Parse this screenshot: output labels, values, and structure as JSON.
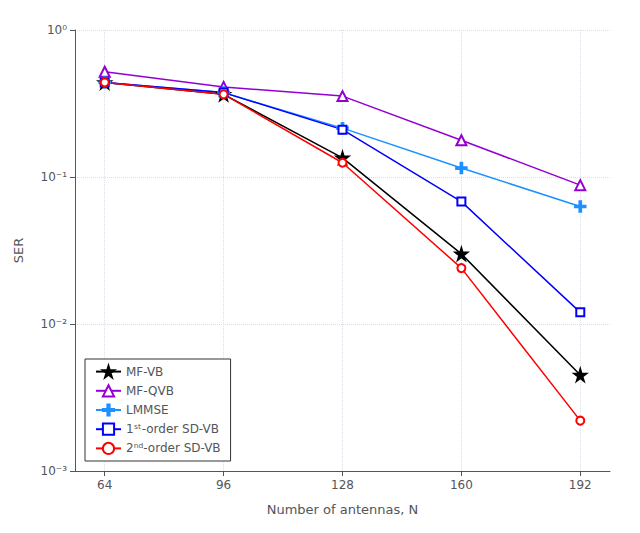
{
  "chart_data": {
    "type": "line",
    "x": [
      64,
      96,
      128,
      160,
      192
    ],
    "series": [
      {
        "name": "MF-VB",
        "color": "#000000",
        "marker": "star",
        "values": [
          0.44,
          0.365,
          0.135,
          0.03,
          0.0045
        ]
      },
      {
        "name": "MF-QVB",
        "color": "#9400D3",
        "marker": "triangle-open",
        "values": [
          0.52,
          0.41,
          0.355,
          0.178,
          0.088
        ]
      },
      {
        "name": "LMMSE",
        "color": "#1E90FF",
        "marker": "plus",
        "values": [
          0.44,
          0.375,
          0.215,
          0.115,
          0.063
        ]
      },
      {
        "name": "1ˢᵗ-order SD-VB",
        "color": "#0000FF",
        "marker": "square-open",
        "values": [
          0.44,
          0.375,
          0.21,
          0.068,
          0.012
        ]
      },
      {
        "name": "2ⁿᵈ-order SD-VB",
        "color": "#FF0000",
        "marker": "circle-open",
        "values": [
          0.44,
          0.365,
          0.125,
          0.024,
          0.0022
        ]
      }
    ],
    "xlabel": "Number of antennas, N",
    "ylabel": "SER",
    "xlim": [
      56,
      200
    ],
    "ylim": [
      0.001,
      1.0
    ],
    "xticks": [
      64,
      96,
      128,
      160,
      192
    ],
    "yticks": [
      {
        "value": 0.001,
        "label": "10⁻³"
      },
      {
        "value": 0.01,
        "label": "10⁻²"
      },
      {
        "value": 0.1,
        "label": "10⁻¹"
      },
      {
        "value": 1,
        "label": "10⁰"
      }
    ],
    "log": "y",
    "grid": true,
    "legend": "lower left"
  }
}
